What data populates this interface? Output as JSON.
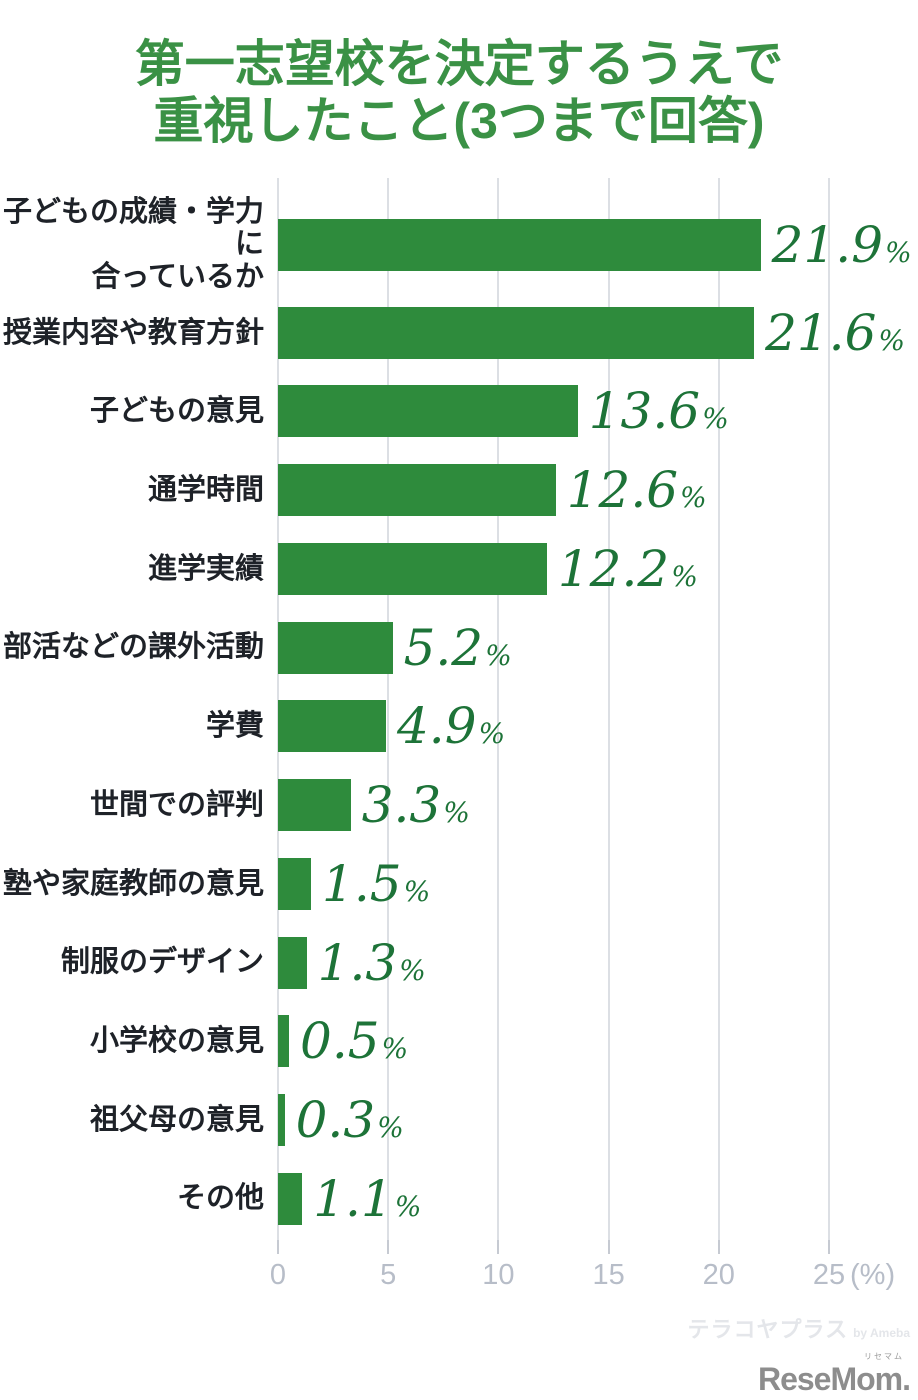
{
  "title": {
    "line1": "第一志望校を決定するうえで",
    "line2": "重視したこと(3つまで回答)"
  },
  "chart_data": {
    "type": "bar",
    "orientation": "horizontal",
    "title": "第一志望校を決定するうえで重視したこと(3つまで回答)",
    "title_lines": [
      "第一志望校を決定するうえで",
      "重視したこと(3つまで回答)"
    ],
    "categories": [
      "子どもの成績・学力に\n合っているか",
      "授業内容や教育方針",
      "子どもの意見",
      "通学時間",
      "進学実績",
      "部活などの課外活動",
      "学費",
      "世間での評判",
      "塾や家庭教師の意見",
      "制服のデザイン",
      "小学校の意見",
      "祖父母の意見",
      "その他"
    ],
    "values": [
      21.9,
      21.6,
      13.6,
      12.6,
      12.2,
      5.2,
      4.9,
      3.3,
      1.5,
      1.3,
      0.5,
      0.3,
      1.1
    ],
    "value_suffix": "%",
    "xlim": [
      0,
      25
    ],
    "x_ticks": [
      0,
      5,
      10,
      15,
      20,
      25
    ],
    "x_axis_unit": "(%)",
    "grid": "vertical",
    "legend": "none",
    "bar_color": "#2e8b3c",
    "value_color": "#1d7338",
    "title_color": "#3a9145",
    "label_color": "#1e2228",
    "tick_label_color": "#b7bdc8"
  },
  "watermarks": {
    "terakoya": "テラコヤプラス",
    "terakoya_by": "by Ameba",
    "resemom": "ReseMom.",
    "resemom_ruby": "リセマム"
  }
}
